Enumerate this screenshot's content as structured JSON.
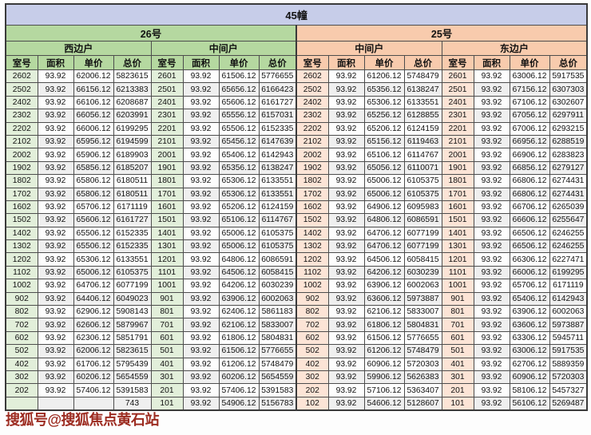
{
  "title": "45幢",
  "watermark": "搜狐号@搜狐焦点黄石站",
  "colors": {
    "lavender": "#c7cde9",
    "green": "#b5d8a0",
    "greentint": "#e2efda",
    "peach": "#f8cbad",
    "peachtint": "#fce4d6",
    "altrow": "#efefef",
    "wmcolor": "#9c2b20"
  },
  "sections": [
    {
      "label": "26号"
    },
    {
      "label": "25号"
    }
  ],
  "col_headers": [
    "室号",
    "面积",
    "单价",
    "总价"
  ],
  "groups": [
    {
      "building": "26号",
      "unit_type": "西边户",
      "rows": [
        [
          "2602",
          "93.92",
          "62006.12",
          "5823615"
        ],
        [
          "2502",
          "93.92",
          "66156.12",
          "6213383"
        ],
        [
          "2402",
          "93.92",
          "66106.12",
          "6208687"
        ],
        [
          "2302",
          "93.92",
          "66056.12",
          "6203991"
        ],
        [
          "2202",
          "93.92",
          "66006.12",
          "6199295"
        ],
        [
          "2102",
          "93.92",
          "65956.12",
          "6194599"
        ],
        [
          "2002",
          "93.92",
          "65906.12",
          "6189903"
        ],
        [
          "1902",
          "93.92",
          "65856.12",
          "6185207"
        ],
        [
          "1802",
          "93.92",
          "65806.12",
          "6180511"
        ],
        [
          "1702",
          "93.92",
          "65806.12",
          "6180511"
        ],
        [
          "1602",
          "93.92",
          "65706.12",
          "6171119"
        ],
        [
          "1502",
          "93.92",
          "65606.12",
          "6161727"
        ],
        [
          "1402",
          "93.92",
          "65506.12",
          "6152335"
        ],
        [
          "1302",
          "93.92",
          "65506.12",
          "6152335"
        ],
        [
          "1202",
          "93.92",
          "65306.12",
          "6133551"
        ],
        [
          "1102",
          "93.92",
          "65006.12",
          "6105375"
        ],
        [
          "1002",
          "93.92",
          "64706.12",
          "6077199"
        ],
        [
          "902",
          "93.92",
          "64406.12",
          "6049023"
        ],
        [
          "802",
          "93.92",
          "62906.12",
          "5908143"
        ],
        [
          "702",
          "93.92",
          "62606.12",
          "5879967"
        ],
        [
          "602",
          "93.92",
          "62306.12",
          "5851791"
        ],
        [
          "502",
          "93.92",
          "62006.12",
          "5823615"
        ],
        [
          "402",
          "93.92",
          "61706.12",
          "5795439"
        ],
        [
          "302",
          "93.92",
          "60206.12",
          "5654559"
        ],
        [
          "202",
          "93.92",
          "57406.12",
          "5391583"
        ],
        [
          "",
          "",
          "",
          "743"
        ]
      ]
    },
    {
      "building": "26号",
      "unit_type": "中间户",
      "rows": [
        [
          "2601",
          "93.92",
          "61506.12",
          "5776655"
        ],
        [
          "2501",
          "93.92",
          "65656.12",
          "6166423"
        ],
        [
          "2401",
          "93.92",
          "65606.12",
          "6161727"
        ],
        [
          "2301",
          "93.92",
          "65556.12",
          "6157031"
        ],
        [
          "2201",
          "93.92",
          "65506.12",
          "6152335"
        ],
        [
          "2101",
          "93.92",
          "65456.12",
          "6147639"
        ],
        [
          "2001",
          "93.92",
          "65406.12",
          "6142943"
        ],
        [
          "1901",
          "93.92",
          "65356.12",
          "6138247"
        ],
        [
          "1801",
          "93.92",
          "65306.12",
          "6133551"
        ],
        [
          "1701",
          "93.92",
          "65306.12",
          "6133551"
        ],
        [
          "1601",
          "93.92",
          "65206.12",
          "6124159"
        ],
        [
          "1501",
          "93.92",
          "65106.12",
          "6114767"
        ],
        [
          "1401",
          "93.92",
          "65006.12",
          "6105375"
        ],
        [
          "1301",
          "93.92",
          "65006.12",
          "6105375"
        ],
        [
          "1201",
          "93.92",
          "64806.12",
          "6086591"
        ],
        [
          "1101",
          "93.92",
          "64506.12",
          "6058415"
        ],
        [
          "1001",
          "93.92",
          "64206.12",
          "6030239"
        ],
        [
          "901",
          "93.92",
          "63906.12",
          "6002063"
        ],
        [
          "801",
          "93.92",
          "62406.12",
          "5861183"
        ],
        [
          "701",
          "93.92",
          "62106.12",
          "5833007"
        ],
        [
          "601",
          "93.92",
          "61806.12",
          "5804831"
        ],
        [
          "501",
          "93.92",
          "61506.12",
          "5776655"
        ],
        [
          "401",
          "93.92",
          "61206.12",
          "5748479"
        ],
        [
          "301",
          "93.92",
          "60206.12",
          "5654559"
        ],
        [
          "201",
          "93.92",
          "57406.12",
          "5391583"
        ],
        [
          "101",
          "93.92",
          "54906.12",
          "5156783"
        ]
      ]
    },
    {
      "building": "25号",
      "unit_type": "中间户",
      "rows": [
        [
          "2602",
          "93.92",
          "61206.12",
          "5748479"
        ],
        [
          "2502",
          "93.92",
          "65356.12",
          "6138247"
        ],
        [
          "2402",
          "93.92",
          "65306.12",
          "6133551"
        ],
        [
          "2302",
          "93.92",
          "65256.12",
          "6128855"
        ],
        [
          "2202",
          "93.92",
          "65206.12",
          "6124159"
        ],
        [
          "2102",
          "93.92",
          "65156.12",
          "6119463"
        ],
        [
          "2002",
          "93.92",
          "65106.12",
          "6114767"
        ],
        [
          "1902",
          "93.92",
          "65056.12",
          "6110071"
        ],
        [
          "1802",
          "93.92",
          "65006.12",
          "6105375"
        ],
        [
          "1702",
          "93.92",
          "65006.12",
          "6105375"
        ],
        [
          "1602",
          "93.92",
          "64906.12",
          "6095983"
        ],
        [
          "1502",
          "93.92",
          "64806.12",
          "6086591"
        ],
        [
          "1402",
          "93.92",
          "64706.12",
          "6077199"
        ],
        [
          "1302",
          "93.92",
          "64706.12",
          "6077199"
        ],
        [
          "1202",
          "93.92",
          "64506.12",
          "6058415"
        ],
        [
          "1102",
          "93.92",
          "64206.12",
          "6030239"
        ],
        [
          "1002",
          "93.92",
          "63906.12",
          "6002063"
        ],
        [
          "902",
          "93.92",
          "63606.12",
          "5973887"
        ],
        [
          "802",
          "93.92",
          "62106.12",
          "5833007"
        ],
        [
          "702",
          "93.92",
          "61806.12",
          "5804831"
        ],
        [
          "602",
          "93.92",
          "61506.12",
          "5776655"
        ],
        [
          "502",
          "93.92",
          "61206.12",
          "5748479"
        ],
        [
          "402",
          "93.92",
          "60906.12",
          "5720303"
        ],
        [
          "302",
          "93.92",
          "59906.12",
          "5626383"
        ],
        [
          "202",
          "93.92",
          "57106.12",
          "5363407"
        ],
        [
          "102",
          "93.92",
          "54606.12",
          "5128607"
        ]
      ]
    },
    {
      "building": "25号",
      "unit_type": "东边户",
      "rows": [
        [
          "2601",
          "93.92",
          "63006.12",
          "5917535"
        ],
        [
          "2501",
          "93.92",
          "67156.12",
          "6307303"
        ],
        [
          "2401",
          "93.92",
          "67106.12",
          "6302607"
        ],
        [
          "2301",
          "93.92",
          "67056.12",
          "6297911"
        ],
        [
          "2201",
          "93.92",
          "67006.12",
          "6293215"
        ],
        [
          "2101",
          "93.92",
          "66956.12",
          "6288519"
        ],
        [
          "2001",
          "93.92",
          "66906.12",
          "6283823"
        ],
        [
          "1901",
          "93.92",
          "66856.12",
          "6279127"
        ],
        [
          "1801",
          "93.92",
          "66806.12",
          "6274431"
        ],
        [
          "1701",
          "93.92",
          "66806.12",
          "6274431"
        ],
        [
          "1601",
          "93.92",
          "66706.12",
          "6265039"
        ],
        [
          "1501",
          "93.92",
          "66606.12",
          "6255647"
        ],
        [
          "1401",
          "93.92",
          "66506.12",
          "6246255"
        ],
        [
          "1301",
          "93.92",
          "66506.12",
          "6246255"
        ],
        [
          "1201",
          "93.92",
          "66306.12",
          "6227471"
        ],
        [
          "1101",
          "93.92",
          "66006.12",
          "6199295"
        ],
        [
          "1001",
          "93.92",
          "65706.12",
          "6171119"
        ],
        [
          "901",
          "93.92",
          "65406.12",
          "6142943"
        ],
        [
          "801",
          "93.92",
          "63906.12",
          "6002063"
        ],
        [
          "701",
          "93.92",
          "63606.12",
          "5973887"
        ],
        [
          "601",
          "93.92",
          "63306.12",
          "5945711"
        ],
        [
          "501",
          "93.92",
          "63006.12",
          "5917535"
        ],
        [
          "401",
          "93.92",
          "62706.12",
          "5889359"
        ],
        [
          "301",
          "93.92",
          "60906.12",
          "5720303"
        ],
        [
          "201",
          "93.92",
          "58106.12",
          "5457327"
        ],
        [
          "101",
          "93.92",
          "56106.12",
          "5269487"
        ]
      ]
    }
  ]
}
